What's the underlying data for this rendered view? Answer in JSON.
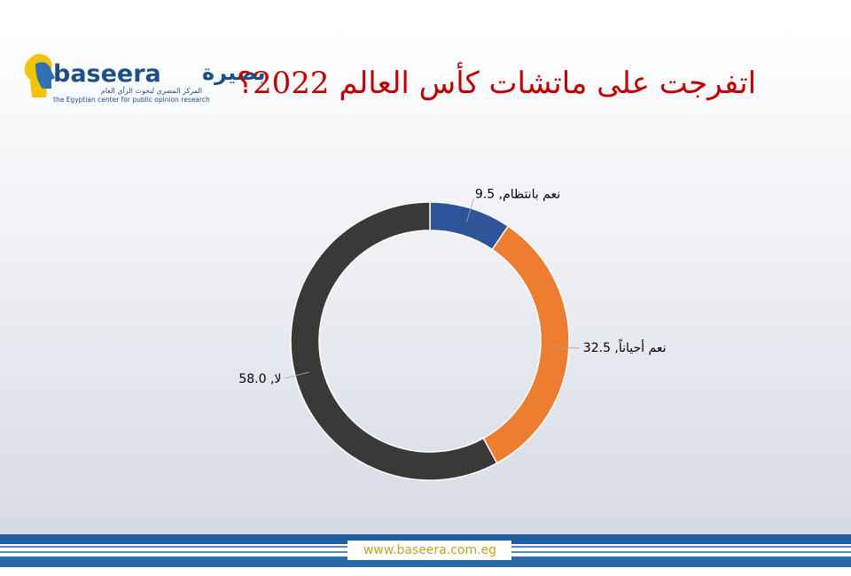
{
  "header": {
    "logo_latin": "baseera",
    "logo_arabic": "بصيرة",
    "logo_subtitle_arabic": "المركز المصري لبحوث الرأي العام",
    "logo_subtitle": "the Egyptian center for public opinion research"
  },
  "chart_data": {
    "type": "donut",
    "title": "اتفرجت على ماتشات كأس العالم 2022؟",
    "data_labels": [
      "نعم بانتظام, 9.5",
      "نعم أحياناً, 32.5",
      "لا, 58.0"
    ],
    "values": [
      9.5,
      32.5,
      58.0
    ],
    "colors": [
      "#2e5597",
      "#ed7d31",
      "#3b3838"
    ]
  },
  "footer": {
    "url": "www.baseera.com.eg"
  }
}
